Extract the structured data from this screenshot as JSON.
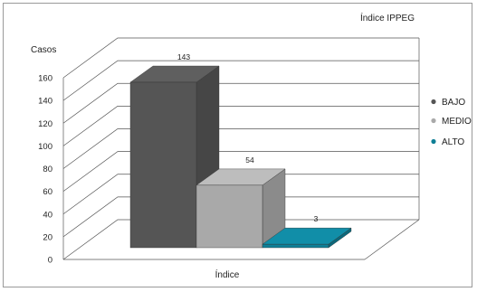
{
  "chart_data": {
    "type": "bar",
    "title": "Índice  IPPEG",
    "ylabel": "Casos",
    "xlabel": "Índice",
    "ylim": [
      0,
      160
    ],
    "yticks": [
      0,
      20,
      40,
      60,
      80,
      100,
      120,
      140,
      160
    ],
    "grid": true,
    "three_d": true,
    "legend_position": "right",
    "categories": [
      "BAJO",
      "MEDIO",
      "ALTO"
    ],
    "values": [
      143,
      54,
      3
    ],
    "data_labels": [
      "143",
      "54",
      "3"
    ],
    "colors": {
      "BAJO": "#555555",
      "MEDIO": "#a9a9a9",
      "ALTO": "#0f7f96"
    }
  }
}
